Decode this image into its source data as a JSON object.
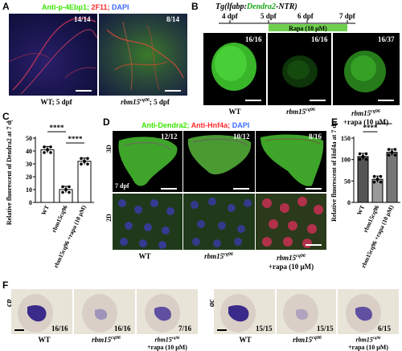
{
  "panel_labels": {
    "A": "A",
    "B": "B",
    "C": "C",
    "D": "D",
    "E": "E",
    "F": "F"
  },
  "panelA": {
    "legend": {
      "p4e": "Anti-p-4Ebp1;",
      "f11": "2F11;",
      "dapi": "DAPI"
    },
    "counts": [
      "14/14",
      "8/14"
    ],
    "captions": {
      "wt": "WT; 5 dpf",
      "mut_gene": "rbm15",
      "mut_sup": "cq96",
      "mut_tail": "; 5 dpf"
    },
    "colors": {
      "green": "#39e600",
      "red": "#ff2a2a",
      "blue": "#3b6bff"
    }
  },
  "panelB": {
    "title_prefix": "Tg(",
    "title_gene": "lfabp",
    "title_colon": ":",
    "title_reporter": "Dendra2",
    "title_suffix": "-NTR)",
    "timeline": [
      "4 dpf",
      "5 dpf",
      "6 dpf",
      "7 dpf"
    ],
    "rapa_label": "Rapa (10 μM)",
    "counts": [
      "16/16",
      "16/16",
      "16/37"
    ],
    "captions": [
      "WT",
      "rbm15",
      "+rapa (10 μM)"
    ],
    "caption_sup": "cq96"
  },
  "panelC": {
    "chart_data": {
      "type": "bar",
      "ylabel": "Relative fluorescent of Dendra2 at 7 dpf",
      "ylim": [
        0,
        50
      ],
      "yticks": [
        0,
        10,
        20,
        30,
        40,
        50
      ],
      "categories": [
        "WT",
        "rbm15cq96",
        "rbm15cq96 +rapa (10 μM)"
      ],
      "values": [
        41,
        10,
        32
      ],
      "sig": [
        "****",
        "****"
      ]
    }
  },
  "panelD": {
    "legend": {
      "d2": "Anti-Dendra2;",
      "hnf": "Anti-Hnf4a;",
      "dapi": "DAPI"
    },
    "row_labels": [
      "3D",
      "2D"
    ],
    "stage": "7 dpf",
    "counts": [
      "12/12",
      "10/12",
      "8/16"
    ],
    "captions": [
      "WT",
      "rbm15",
      "+rapa (10 μM)"
    ],
    "caption_sup": "cq96"
  },
  "panelE": {
    "chart_data": {
      "type": "bar",
      "ylabel": "Relative fluorescent of Hnf4a at 7 dpf",
      "ylim": [
        0,
        150
      ],
      "yticks": [
        0,
        50,
        100,
        150
      ],
      "categories": [
        "WT",
        "rbm15cq96",
        "rbm15cq96 +rapa (10 μM)"
      ],
      "values": [
        107,
        54,
        117
      ],
      "colors": [
        "#555555",
        "#9a9a9a",
        "#777777"
      ],
      "sig": [
        "****",
        "****"
      ]
    }
  },
  "panelF": {
    "genes": [
      "cp",
      "gc"
    ],
    "counts_left": [
      "16/16",
      "16/16",
      "7/16"
    ],
    "counts_right": [
      "15/15",
      "15/15",
      "6/15"
    ],
    "captions": [
      "WT",
      "rbm15",
      "+rapa (10 μM)"
    ],
    "caption_sup": "cq96"
  }
}
